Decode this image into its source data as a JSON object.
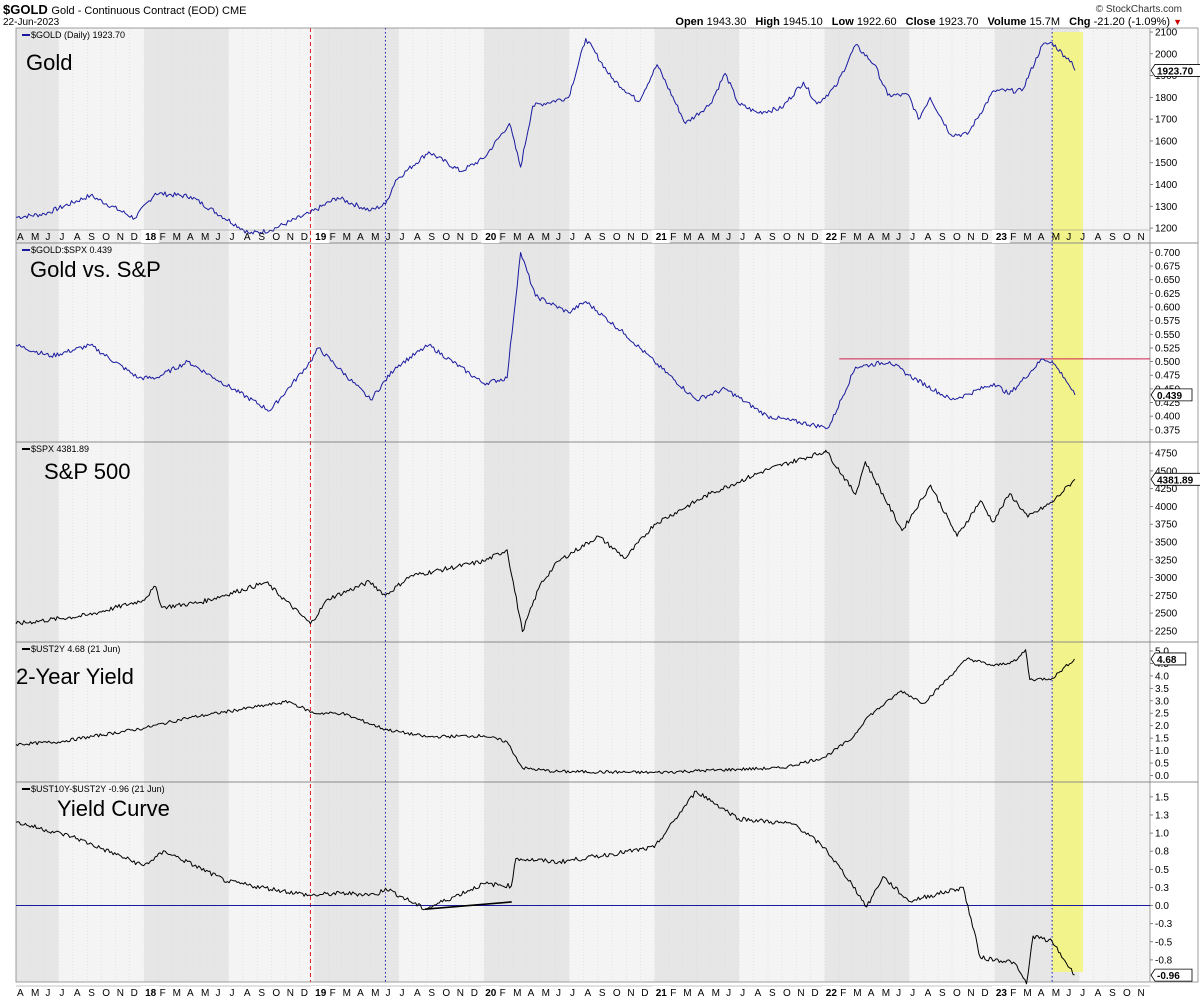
{
  "header": {
    "symbol": "$GOLD",
    "description": "Gold - Continuous Contract (EOD)",
    "exchange": "CME",
    "date": "22-Jun-2023",
    "brand": "© StockCharts.com",
    "open_label": "Open",
    "open": "1943.30",
    "high_label": "High",
    "high": "1945.10",
    "low_label": "Low",
    "low": "1922.60",
    "close_label": "Close",
    "close": "1923.70",
    "volume_label": "Volume",
    "volume": "15.7M",
    "chg_label": "Chg",
    "chg": "-21.20 (-1.09%)",
    "chg_icon": "triangle-down-icon"
  },
  "colors": {
    "gold_line": "#1a1aa0",
    "black_line": "#000000",
    "red_line": "#e02020",
    "blue_dotted": "#2020c0",
    "highlight": "#f5f57a",
    "shade_dark": "#e6e6e6",
    "shade_light": "#f4f4f4",
    "baseline": "#1a1aa0",
    "ratio_resistance": "#d02050"
  },
  "timeline": {
    "start": "2017-04-01",
    "end": "2023-11-30",
    "axis_labels": [
      "A",
      "M",
      "J",
      "J",
      "A",
      "S",
      "O",
      "N",
      "D",
      "18",
      "F",
      "M",
      "A",
      "M",
      "J",
      "J",
      "A",
      "S",
      "O",
      "N",
      "D",
      "19",
      "F",
      "M",
      "A",
      "M",
      "J",
      "J",
      "A",
      "S",
      "O",
      "N",
      "D",
      "20",
      "F",
      "M",
      "A",
      "M",
      "J",
      "J",
      "A",
      "S",
      "O",
      "N",
      "D",
      "21",
      "F",
      "M",
      "A",
      "M",
      "J",
      "J",
      "A",
      "S",
      "O",
      "N",
      "D",
      "22",
      "F",
      "M",
      "A",
      "M",
      "J",
      "J",
      "A",
      "S",
      "O",
      "N",
      "D",
      "23",
      "F",
      "M",
      "A",
      "M",
      "J",
      "J",
      "A",
      "S",
      "O",
      "N"
    ],
    "year_bands": [
      "2018",
      "2019",
      "2020",
      "2021",
      "2022",
      "2023"
    ],
    "red_dashed_date": "2018-12-24",
    "blue_dotted_dates": [
      "2019-06-03",
      "2023-05-04"
    ],
    "highlight_range": [
      "2023-05-04",
      "2023-06-22"
    ]
  },
  "chart_data": [
    {
      "type": "line",
      "title": "Gold",
      "legend": "$GOLD (Daily) 1923.70",
      "last_value": "1923.70",
      "ylim": [
        1150,
        2100
      ],
      "yticks": [
        1200,
        1300,
        1400,
        1500,
        1600,
        1700,
        1800,
        1900,
        2000,
        2100
      ],
      "color": "#1a1aa0",
      "x": [
        "2017-04-01",
        "2017-06-01",
        "2017-09-08",
        "2017-12-12",
        "2018-01-25",
        "2018-04-11",
        "2018-08-16",
        "2018-09-28",
        "2018-12-24",
        "2019-02-20",
        "2019-05-02",
        "2019-06-03",
        "2019-06-25",
        "2019-09-04",
        "2019-11-12",
        "2019-12-31",
        "2020-02-24",
        "2020-03-19",
        "2020-04-14",
        "2020-06-30",
        "2020-08-06",
        "2020-09-30",
        "2020-11-27",
        "2021-01-06",
        "2021-03-08",
        "2021-04-30",
        "2021-06-01",
        "2021-06-30",
        "2021-08-09",
        "2021-09-30",
        "2021-11-16",
        "2021-12-15",
        "2022-01-25",
        "2022-03-08",
        "2022-04-18",
        "2022-05-16",
        "2022-06-30",
        "2022-07-21",
        "2022-08-15",
        "2022-09-28",
        "2022-11-03",
        "2022-12-30",
        "2023-02-28",
        "2023-04-13",
        "2023-05-04",
        "2023-05-31",
        "2023-06-15",
        "2023-06-22"
      ],
      "values": [
        1250,
        1265,
        1350,
        1245,
        1360,
        1345,
        1175,
        1190,
        1270,
        1340,
        1280,
        1310,
        1420,
        1550,
        1460,
        1520,
        1680,
        1480,
        1760,
        1800,
        2070,
        1890,
        1780,
        1950,
        1680,
        1770,
        1910,
        1770,
        1730,
        1750,
        1870,
        1770,
        1850,
        2040,
        1950,
        1810,
        1810,
        1700,
        1800,
        1630,
        1630,
        1830,
        1830,
        2040,
        2050,
        1990,
        1965,
        1923.7
      ]
    },
    {
      "type": "line",
      "title": "Gold vs. S&P",
      "legend": "$GOLD:$SPX 0.439",
      "last_value": "0.439",
      "ylim": [
        0.36,
        0.71
      ],
      "yticks": [
        0.375,
        0.4,
        0.425,
        0.45,
        0.475,
        0.5,
        0.525,
        0.55,
        0.575,
        0.6,
        0.625,
        0.65,
        0.675,
        0.7
      ],
      "color": "#1a1aa0",
      "resistance_level": 0.505,
      "resistance_from": "2022-02-01",
      "x": [
        "2017-04-01",
        "2017-06-15",
        "2017-09-08",
        "2017-12-20",
        "2018-01-26",
        "2018-04-05",
        "2018-06-01",
        "2018-09-28",
        "2018-12-24",
        "2019-01-10",
        "2019-05-02",
        "2019-06-25",
        "2019-09-04",
        "2019-12-31",
        "2020-02-19",
        "2020-03-19",
        "2020-04-20",
        "2020-06-30",
        "2020-08-06",
        "2020-10-30",
        "2020-12-31",
        "2021-03-31",
        "2021-06-01",
        "2021-08-31",
        "2021-12-31",
        "2022-01-10",
        "2022-03-08",
        "2022-05-20",
        "2022-06-30",
        "2022-09-30",
        "2022-11-03",
        "2022-12-30",
        "2023-02-01",
        "2023-04-13",
        "2023-05-04",
        "2023-05-31",
        "2023-06-22"
      ],
      "values": [
        0.53,
        0.51,
        0.53,
        0.47,
        0.47,
        0.5,
        0.47,
        0.41,
        0.5,
        0.525,
        0.43,
        0.49,
        0.53,
        0.46,
        0.47,
        0.7,
        0.62,
        0.59,
        0.61,
        0.55,
        0.5,
        0.43,
        0.45,
        0.4,
        0.38,
        0.38,
        0.49,
        0.5,
        0.475,
        0.43,
        0.44,
        0.46,
        0.44,
        0.505,
        0.5,
        0.47,
        0.439
      ]
    },
    {
      "type": "line",
      "title": "S&P 500",
      "legend": "$SPX 4381.89",
      "last_value": "4381.89",
      "ylim": [
        2150,
        4850
      ],
      "yticks": [
        2250,
        2500,
        2750,
        3000,
        3250,
        3500,
        3750,
        4000,
        4250,
        4500,
        4750
      ],
      "color": "#000000",
      "x": [
        "2017-04-01",
        "2017-09-01",
        "2017-12-29",
        "2018-01-26",
        "2018-02-08",
        "2018-05-01",
        "2018-09-20",
        "2018-12-24",
        "2019-01-31",
        "2019-04-30",
        "2019-06-03",
        "2019-07-26",
        "2019-12-31",
        "2020-02-19",
        "2020-03-23",
        "2020-04-30",
        "2020-06-08",
        "2020-09-02",
        "2020-10-30",
        "2020-12-31",
        "2021-04-30",
        "2021-08-31",
        "2021-12-31",
        "2022-01-03",
        "2022-03-08",
        "2022-03-29",
        "2022-06-16",
        "2022-08-16",
        "2022-10-12",
        "2022-12-01",
        "2022-12-28",
        "2023-02-02",
        "2023-03-13",
        "2023-05-04",
        "2023-06-22"
      ],
      "values": [
        2350,
        2470,
        2680,
        2870,
        2580,
        2650,
        2930,
        2350,
        2700,
        2940,
        2750,
        3020,
        3230,
        3390,
        2240,
        2900,
        3230,
        3580,
        3270,
        3750,
        4180,
        4520,
        4770,
        4790,
        4170,
        4630,
        3660,
        4300,
        3580,
        4080,
        3780,
        4180,
        3850,
        4060,
        4381.89
      ]
    },
    {
      "type": "line",
      "title": "2-Year Yield",
      "legend": "$UST2Y 4.68 (21 Jun)",
      "last_value": "4.68",
      "ylim": [
        -0.1,
        5.2
      ],
      "yticks": [
        0,
        0.5,
        1,
        1.5,
        2,
        2.5,
        3,
        3.5,
        4,
        4.5,
        5
      ],
      "color": "#000000",
      "x": [
        "2017-04-01",
        "2017-07-01",
        "2017-12-31",
        "2018-04-01",
        "2018-11-08",
        "2018-12-31",
        "2019-03-01",
        "2019-06-03",
        "2019-09-01",
        "2019-12-31",
        "2020-02-19",
        "2020-03-23",
        "2020-06-01",
        "2020-12-31",
        "2021-06-30",
        "2021-09-30",
        "2021-12-31",
        "2022-03-01",
        "2022-03-31",
        "2022-06-14",
        "2022-08-01",
        "2022-11-03",
        "2022-12-30",
        "2023-02-15",
        "2023-03-08",
        "2023-03-17",
        "2023-05-04",
        "2023-06-21"
      ],
      "values": [
        1.25,
        1.35,
        1.9,
        2.3,
        2.97,
        2.5,
        2.5,
        1.85,
        1.55,
        1.6,
        1.35,
        0.3,
        0.16,
        0.12,
        0.25,
        0.3,
        0.73,
        1.5,
        2.3,
        3.4,
        2.9,
        4.7,
        4.4,
        4.6,
        5.05,
        3.85,
        3.9,
        4.68
      ]
    },
    {
      "type": "line",
      "title": "Yield Curve",
      "legend": "$UST10Y-$UST2Y -0.96 (21 Jun)",
      "last_value": "-0.96",
      "ylim": [
        -1.0,
        1.65
      ],
      "yticks": [
        -0.75,
        -0.5,
        -0.25,
        0,
        0.25,
        0.5,
        0.75,
        1,
        1.25,
        1.5
      ],
      "color": "#000000",
      "zero_line": 0,
      "trendline": {
        "x": [
          "2019-08-27",
          "2020-02-29"
        ],
        "values": [
          -0.05,
          0.05
        ]
      },
      "x": [
        "2017-04-01",
        "2017-08-01",
        "2017-12-31",
        "2018-02-15",
        "2018-06-29",
        "2018-12-24",
        "2019-03-01",
        "2019-05-15",
        "2019-06-03",
        "2019-08-27",
        "2019-12-31",
        "2020-02-28",
        "2020-03-09",
        "2020-06-08",
        "2020-12-31",
        "2021-03-31",
        "2021-06-30",
        "2021-10-29",
        "2021-12-31",
        "2022-02-28",
        "2022-04-01",
        "2022-05-06",
        "2022-06-30",
        "2022-10-25",
        "2022-12-01",
        "2023-02-10",
        "2023-03-10",
        "2023-03-24",
        "2023-05-04",
        "2023-06-21"
      ],
      "values": [
        1.15,
        0.95,
        0.55,
        0.75,
        0.33,
        0.14,
        0.17,
        0.15,
        0.24,
        -0.05,
        0.3,
        0.27,
        0.65,
        0.6,
        0.8,
        1.58,
        1.2,
        1.12,
        0.8,
        0.3,
        -0.02,
        0.4,
        0.06,
        0.25,
        -0.72,
        -0.78,
        -1.08,
        -0.42,
        -0.5,
        -0.96
      ]
    }
  ]
}
